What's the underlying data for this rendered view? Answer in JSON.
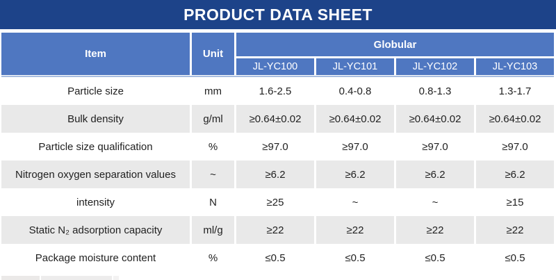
{
  "title_bar": {
    "title": "PRODUCT DATA SHEET"
  },
  "table": {
    "header": {
      "item_label": "Item",
      "unit_label": "Unit",
      "group_label": "Globular",
      "models": [
        "JL-YC100",
        "JL-YC101",
        "JL-YC102",
        "JL-YC103"
      ]
    },
    "rows": [
      {
        "label": "Particle size",
        "unit": "mm",
        "values": [
          "1.6-2.5",
          "0.4-0.8",
          "0.8-1.3",
          "1.3-1.7"
        ]
      },
      {
        "label": "Bulk density",
        "unit": "g/ml",
        "values": [
          "≥0.64±0.02",
          "≥0.64±0.02",
          "≥0.64±0.02",
          "≥0.64±0.02"
        ]
      },
      {
        "label": "Particle size qualification",
        "unit": "%",
        "values": [
          "≥97.0",
          "≥97.0",
          "≥97.0",
          "≥97.0"
        ]
      },
      {
        "label": "Nitrogen oxygen separation values",
        "unit": "~",
        "values": [
          "≥6.2",
          "≥6.2",
          "≥6.2",
          "≥6.2"
        ]
      },
      {
        "label": "intensity",
        "unit": "N",
        "values": [
          "≥25",
          "~",
          "~",
          "≥15"
        ]
      },
      {
        "label": "Static N₂ adsorption capacity",
        "unit": "ml/g",
        "values": [
          "≥22",
          "≥22",
          "≥22",
          "≥22"
        ]
      },
      {
        "label": "Package moisture content",
        "unit": "%",
        "values": [
          "≤0.5",
          "≤0.5",
          "≤0.5",
          "≤0.5"
        ]
      }
    ]
  },
  "colors": {
    "title_bar_bg": "#1d4389",
    "header_bg": "#4f77c1",
    "header_text": "#ffffff",
    "row_alt_bg": "#e9e9e9",
    "body_text": "#1f1f1f",
    "header_divider": "#a9bddf"
  }
}
